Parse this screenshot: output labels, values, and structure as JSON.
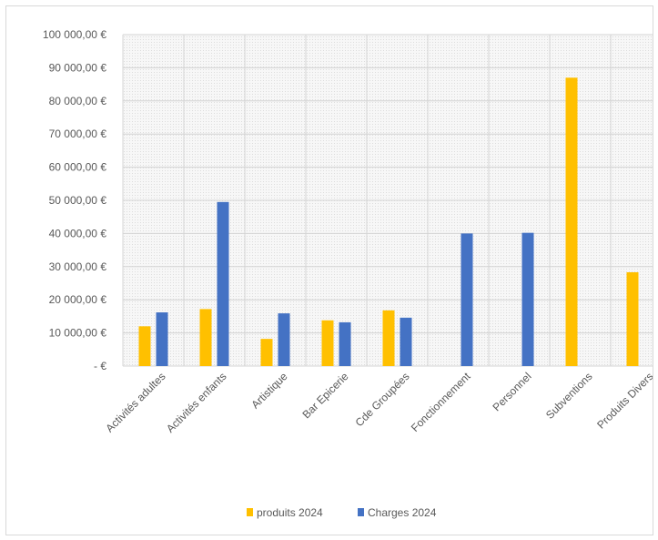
{
  "chart_data": {
    "type": "bar",
    "categories": [
      "Activités adultes",
      "Activités enfants",
      "Artistique",
      "Bar Epicerie",
      "Cde Groupées",
      "Fonctionnement",
      "Personnel",
      "Subventions",
      "Produits Divers"
    ],
    "series": [
      {
        "name": "produits 2024",
        "color": "#FFC000",
        "values": [
          12000,
          17200,
          8200,
          13800,
          16800,
          0,
          0,
          87000,
          28300
        ]
      },
      {
        "name": "Charges 2024",
        "color": "#4472C4",
        "values": [
          16200,
          49500,
          15900,
          13200,
          14600,
          40000,
          40200,
          0,
          0
        ]
      }
    ],
    "y_ticks": [
      {
        "value": 0,
        "label": "-   €"
      },
      {
        "value": 10000,
        "label": "10 000,00 €"
      },
      {
        "value": 20000,
        "label": "20 000,00 €"
      },
      {
        "value": 30000,
        "label": "30 000,00 €"
      },
      {
        "value": 40000,
        "label": "40 000,00 €"
      },
      {
        "value": 50000,
        "label": "50 000,00 €"
      },
      {
        "value": 60000,
        "label": "60 000,00 €"
      },
      {
        "value": 70000,
        "label": "70 000,00 €"
      },
      {
        "value": 80000,
        "label": "80 000,00 €"
      },
      {
        "value": 90000,
        "label": "90 000,00 €"
      },
      {
        "value": 100000,
        "label": "100 000,00 €"
      }
    ],
    "ylim": [
      0,
      100000
    ],
    "grid": true,
    "legend_position": "bottom",
    "title": "",
    "xlabel": "",
    "ylabel": ""
  }
}
